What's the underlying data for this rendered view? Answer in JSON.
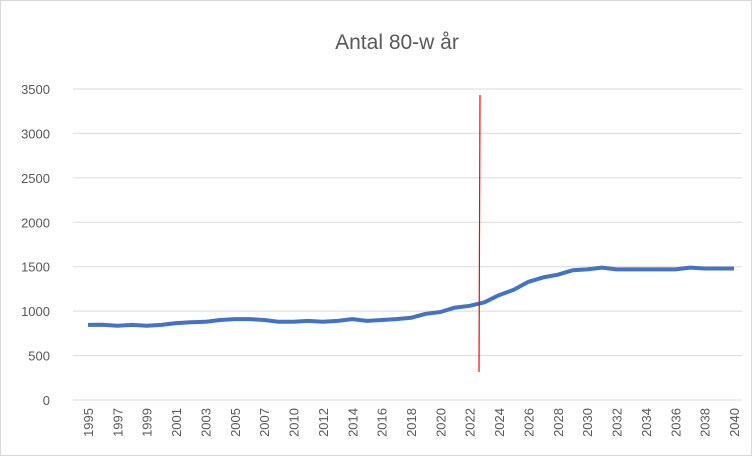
{
  "chart_data": {
    "type": "line",
    "title": "Antal 80-w år",
    "categories": [
      "1995",
      null,
      "1997",
      null,
      "1999",
      null,
      "2001",
      null,
      "2003",
      null,
      "2005",
      null,
      "2007",
      null,
      "2010",
      null,
      "2012",
      null,
      "2014",
      null,
      "2016",
      null,
      "2018",
      null,
      "2020",
      null,
      "2022",
      null,
      "2024",
      null,
      "2026",
      null,
      "2028",
      null,
      "2030",
      null,
      "2032",
      null,
      "2034",
      null,
      "2036",
      null,
      "2038",
      null,
      "2040"
    ],
    "series": [
      {
        "color": "#4472c4",
        "values": [
          845,
          846,
          835,
          845,
          835,
          845,
          865,
          875,
          880,
          900,
          910,
          910,
          900,
          880,
          880,
          890,
          880,
          890,
          910,
          890,
          900,
          910,
          925,
          970,
          990,
          1040,
          1060,
          1100,
          1180,
          1240,
          1330,
          1380,
          1410,
          1460,
          1470,
          1490,
          1470,
          1470,
          1470,
          1470,
          1470,
          1490,
          1480,
          1480,
          1480
        ]
      }
    ],
    "ylim": [
      0,
      3500
    ],
    "yticks": [
      0,
      500,
      1000,
      1500,
      2000,
      2500,
      3000,
      3500
    ],
    "grid": true
  }
}
